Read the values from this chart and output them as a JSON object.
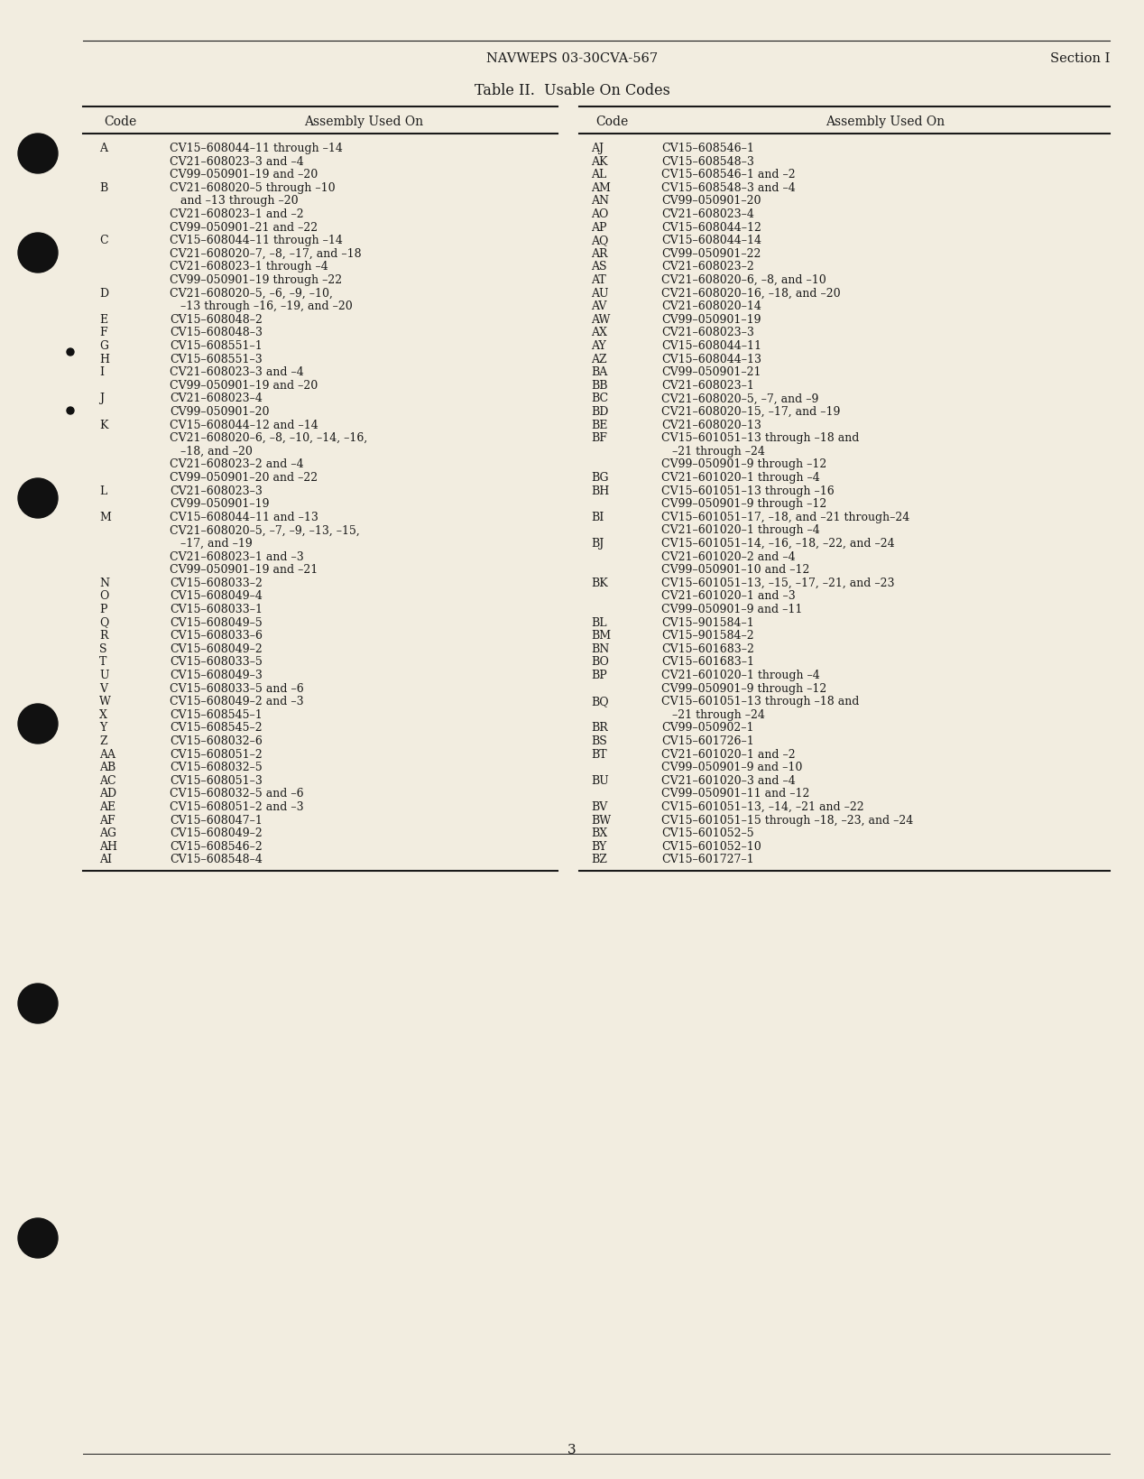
{
  "header_center": "NAVWEPS 03-30CVA-567",
  "header_right": "Section I",
  "title": "Table II.  Usable On Codes",
  "page_number": "3",
  "bg_color": "#f2ede0",
  "left_table": {
    "col1_header": "Code",
    "col2_header": "Assembly Used On",
    "rows": [
      [
        "A",
        "CV15–608044–11 through –14"
      ],
      [
        "",
        "CV21–608023–3 and –4"
      ],
      [
        "",
        "CV99–050901–19 and –20"
      ],
      [
        "B",
        "CV21–608020–5 through –10"
      ],
      [
        "",
        "   and –13 through –20"
      ],
      [
        "",
        "CV21–608023–1 and –2"
      ],
      [
        "",
        "CV99–050901–21 and –22"
      ],
      [
        "C",
        "CV15–608044–11 through –14"
      ],
      [
        "",
        "CV21–608020–7, –8, –17, and –18"
      ],
      [
        "",
        "CV21–608023–1 through –4"
      ],
      [
        "",
        "CV99–050901–19 through –22"
      ],
      [
        "D",
        "CV21–608020–5, –6, –9, –10,"
      ],
      [
        "",
        "   –13 through –16, –19, and –20"
      ],
      [
        "E",
        "CV15–608048–2"
      ],
      [
        "F",
        "CV15–608048–3"
      ],
      [
        "G",
        "CV15–608551–1"
      ],
      [
        "H",
        "CV15–608551–3"
      ],
      [
        "I",
        "CV21–608023–3 and –4"
      ],
      [
        "",
        "CV99–050901–19 and –20"
      ],
      [
        "J",
        "CV21–608023–4"
      ],
      [
        "",
        "CV99–050901–20"
      ],
      [
        "K",
        "CV15–608044–12 and –14"
      ],
      [
        "",
        "CV21–608020–6, –8, –10, –14, –16,"
      ],
      [
        "",
        "   –18, and –20"
      ],
      [
        "",
        "CV21–608023–2 and –4"
      ],
      [
        "",
        "CV99–050901–20 and –22"
      ],
      [
        "L",
        "CV21–608023–3"
      ],
      [
        "",
        "CV99–050901–19"
      ],
      [
        "M",
        "CV15–608044–11 and –13"
      ],
      [
        "",
        "CV21–608020–5, –7, –9, –13, –15,"
      ],
      [
        "",
        "   –17, and –19"
      ],
      [
        "",
        "CV21–608023–1 and –3"
      ],
      [
        "",
        "CV99–050901–19 and –21"
      ],
      [
        "N",
        "CV15–608033–2"
      ],
      [
        "O",
        "CV15–608049–4"
      ],
      [
        "P",
        "CV15–608033–1"
      ],
      [
        "Q",
        "CV15–608049–5"
      ],
      [
        "R",
        "CV15–608033–6"
      ],
      [
        "S",
        "CV15–608049–2"
      ],
      [
        "T",
        "CV15–608033–5"
      ],
      [
        "U",
        "CV15–608049–3"
      ],
      [
        "V",
        "CV15–608033–5 and –6"
      ],
      [
        "W",
        "CV15–608049–2 and –3"
      ],
      [
        "X",
        "CV15–608545–1"
      ],
      [
        "Y",
        "CV15–608545–2"
      ],
      [
        "Z",
        "CV15–608032–6"
      ],
      [
        "AA",
        "CV15–608051–2"
      ],
      [
        "AB",
        "CV15–608032–5"
      ],
      [
        "AC",
        "CV15–608051–3"
      ],
      [
        "AD",
        "CV15–608032–5 and –6"
      ],
      [
        "AE",
        "CV15–608051–2 and –3"
      ],
      [
        "AF",
        "CV15–608047–1"
      ],
      [
        "AG",
        "CV15–608049–2"
      ],
      [
        "AH",
        "CV15–608546–2"
      ],
      [
        "AI",
        "CV15–608548–4"
      ]
    ]
  },
  "right_table": {
    "col1_header": "Code",
    "col2_header": "Assembly Used On",
    "rows": [
      [
        "AJ",
        "CV15–608546–1"
      ],
      [
        "AK",
        "CV15–608548–3"
      ],
      [
        "AL",
        "CV15–608546–1 and –2"
      ],
      [
        "AM",
        "CV15–608548–3 and –4"
      ],
      [
        "AN",
        "CV99–050901–20"
      ],
      [
        "AO",
        "CV21–608023–4"
      ],
      [
        "AP",
        "CV15–608044–12"
      ],
      [
        "AQ",
        "CV15–608044–14"
      ],
      [
        "AR",
        "CV99–050901–22"
      ],
      [
        "AS",
        "CV21–608023–2"
      ],
      [
        "AT",
        "CV21–608020–6, –8, and –10"
      ],
      [
        "AU",
        "CV21–608020–16, –18, and –20"
      ],
      [
        "AV",
        "CV21–608020–14"
      ],
      [
        "AW",
        "CV99–050901–19"
      ],
      [
        "AX",
        "CV21–608023–3"
      ],
      [
        "AY",
        "CV15–608044–11"
      ],
      [
        "AZ",
        "CV15–608044–13"
      ],
      [
        "BA",
        "CV99–050901–21"
      ],
      [
        "BB",
        "CV21–608023–1"
      ],
      [
        "BC",
        "CV21–608020–5, –7, and –9"
      ],
      [
        "BD",
        "CV21–608020–15, –17, and –19"
      ],
      [
        "BE",
        "CV21–608020–13"
      ],
      [
        "BF",
        "CV15–601051–13 through –18 and"
      ],
      [
        "",
        "   –21 through –24"
      ],
      [
        "",
        "CV99–050901–9 through –12"
      ],
      [
        "BG",
        "CV21–601020–1 through –4"
      ],
      [
        "BH",
        "CV15–601051–13 through –16"
      ],
      [
        "",
        "CV99–050901–9 through –12"
      ],
      [
        "BI",
        "CV15–601051–17, –18, and –21 through–24"
      ],
      [
        "",
        "CV21–601020–1 through –4"
      ],
      [
        "BJ",
        "CV15–601051–14, –16, –18, –22, and –24"
      ],
      [
        "",
        "CV21–601020–2 and –4"
      ],
      [
        "",
        "CV99–050901–10 and –12"
      ],
      [
        "BK",
        "CV15–601051–13, –15, –17, –21, and –23"
      ],
      [
        "",
        "CV21–601020–1 and –3"
      ],
      [
        "",
        "CV99–050901–9 and –11"
      ],
      [
        "BL",
        "CV15–901584–1"
      ],
      [
        "BM",
        "CV15–901584–2"
      ],
      [
        "BN",
        "CV15–601683–2"
      ],
      [
        "BO",
        "CV15–601683–1"
      ],
      [
        "BP",
        "CV21–601020–1 through –4"
      ],
      [
        "",
        "CV99–050901–9 through –12"
      ],
      [
        "BQ",
        "CV15–601051–13 through –18 and"
      ],
      [
        "",
        "   –21 through –24"
      ],
      [
        "BR",
        "CV99–050902–1"
      ],
      [
        "BS",
        "CV15–601726–1"
      ],
      [
        "BT",
        "CV21–601020–1 and –2"
      ],
      [
        "",
        "CV99–050901–9 and –10"
      ],
      [
        "BU",
        "CV21–601020–3 and –4"
      ],
      [
        "",
        "CV99–050901–11 and –12"
      ],
      [
        "BV",
        "CV15–601051–13, –14, –21 and –22"
      ],
      [
        "BW",
        "CV15–601051–15 through –18, –23, and –24"
      ],
      [
        "BX",
        "CV15–601052–5"
      ],
      [
        "BY",
        "CV15–601052–10"
      ],
      [
        "BZ",
        "CV15–601727–1"
      ]
    ]
  }
}
